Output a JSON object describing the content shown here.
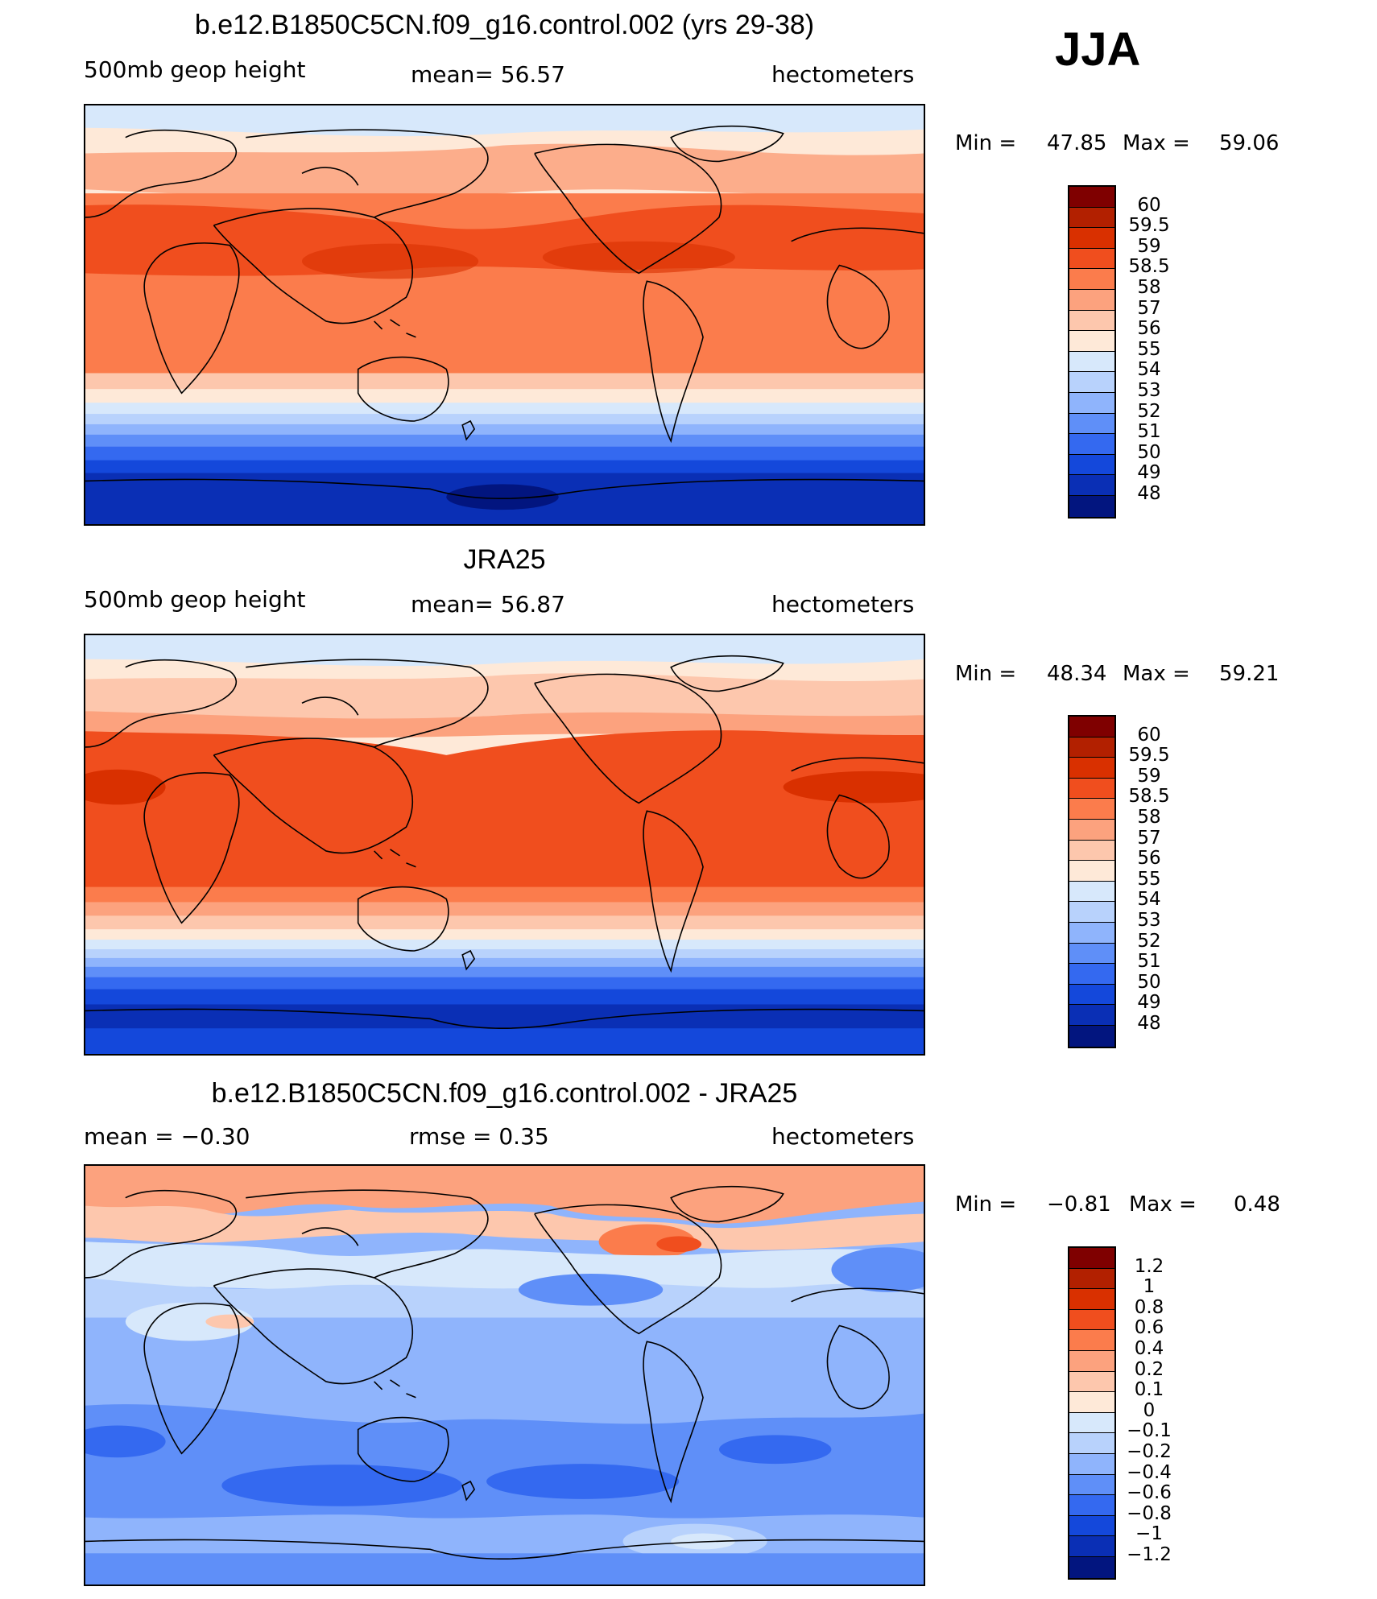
{
  "season": "JJA",
  "panels": [
    {
      "title": "b.e12.B1850C5CN.f09_g16.control.002 (yrs 29-38)",
      "variable": "500mb  geop  height",
      "stat": "mean=   56.57",
      "units": "hectometers",
      "min_label": "Min  =",
      "min_value": "47.85",
      "max_label": "Max  =",
      "max_value": "59.06",
      "colorbar": {
        "colors": [
          "#7f0000",
          "#b22000",
          "#d93000",
          "#f04e1e",
          "#fb7c4c",
          "#fca27e",
          "#fdc7ad",
          "#fee9d8",
          "#d7e8fb",
          "#b8d2fc",
          "#8fb4fc",
          "#5f8ff8",
          "#3469f0",
          "#1448db",
          "#0a2fb5",
          "#02157f"
        ],
        "labels": [
          "60",
          "59.5",
          "59",
          "58.5",
          "58",
          "57",
          "56",
          "55",
          "54",
          "53",
          "52",
          "51",
          "50",
          "49",
          "48"
        ]
      }
    },
    {
      "title": "JRA25",
      "variable": "500mb  geop  height",
      "stat": "mean=   56.87",
      "units": "hectometers",
      "min_label": "Min  =",
      "min_value": "48.34",
      "max_label": "Max  =",
      "max_value": "59.21",
      "colorbar": {
        "colors": [
          "#7f0000",
          "#b22000",
          "#d93000",
          "#f04e1e",
          "#fb7c4c",
          "#fca27e",
          "#fdc7ad",
          "#fee9d8",
          "#d7e8fb",
          "#b8d2fc",
          "#8fb4fc",
          "#5f8ff8",
          "#3469f0",
          "#1448db",
          "#0a2fb5",
          "#02157f"
        ],
        "labels": [
          "60",
          "59.5",
          "59",
          "58.5",
          "58",
          "57",
          "56",
          "55",
          "54",
          "53",
          "52",
          "51",
          "50",
          "49",
          "48"
        ]
      }
    },
    {
      "title": "b.e12.B1850C5CN.f09_g16.control.002 - JRA25",
      "stat": "mean  =    −0.30",
      "stat2": "rmse  =     0.35",
      "units": "hectometers",
      "min_label": "Min  =",
      "min_value": "−0.81",
      "max_label": "Max  =",
      "max_value": "0.48",
      "colorbar": {
        "colors": [
          "#7f0000",
          "#b22000",
          "#d93000",
          "#f04e1e",
          "#fb7c4c",
          "#fca27e",
          "#fdc7ad",
          "#fee9d8",
          "#d7e8fb",
          "#b8d2fc",
          "#8fb4fc",
          "#5f8ff8",
          "#3469f0",
          "#1448db",
          "#0a2fb5",
          "#02157f"
        ],
        "labels": [
          "1.2",
          "1",
          "0.8",
          "0.6",
          "0.4",
          "0.2",
          "0.1",
          "0",
          "−0.1",
          "−0.2",
          "−0.4",
          "−0.6",
          "−0.8",
          "−1",
          "−1.2"
        ]
      }
    }
  ]
}
